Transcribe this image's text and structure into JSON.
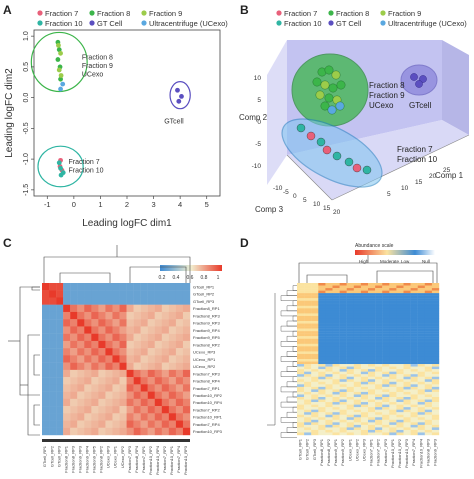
{
  "colors": {
    "fraction7": "#e8607a",
    "fraction8": "#3cb54a",
    "fraction9": "#9ccc4a",
    "fraction10": "#2fb5a3",
    "gtcell": "#5b4fc0",
    "ucexo": "#5aa8e0",
    "green_ring": "#3cb54a",
    "teal_ring": "#2fb5a3",
    "blue_ring": "#5b4fc0",
    "heat_high": "#e83a2a",
    "heat_mid": "#fbe3a0",
    "heat_low": "#3d8bd4",
    "box_face": "#c8c8f0"
  },
  "panels": {
    "a": {
      "letter": "A"
    },
    "b": {
      "letter": "B"
    },
    "c": {
      "letter": "C"
    },
    "d": {
      "letter": "D"
    }
  },
  "legend": [
    {
      "label": "Fraction 7",
      "color_key": "fraction7"
    },
    {
      "label": "Fraction 8",
      "color_key": "fraction8"
    },
    {
      "label": "Fraction 9",
      "color_key": "fraction9"
    },
    {
      "label": "Fraction 10",
      "color_key": "fraction10"
    },
    {
      "label": "GT Cell",
      "color_key": "gtcell"
    },
    {
      "label": "Ultracentrifuge (UCexo)",
      "color_key": "ucexo"
    }
  ],
  "chart_data": [
    {
      "panel": "A",
      "type": "scatter",
      "xlabel": "Leading logFC dim1",
      "ylabel": "Leading logFC dim2",
      "xlim": [
        -1.5,
        5.5
      ],
      "ylim": [
        -1.6,
        1.1
      ],
      "xticks": [
        -1,
        0,
        1,
        2,
        3,
        4,
        5
      ],
      "yticks": [
        -1.5,
        -1.0,
        -0.5,
        0.0,
        0.5,
        1.0
      ],
      "ytick_labels": [
        "-1.5",
        "-1.0",
        "-0.5",
        "0.0",
        "0.5",
        "1.0"
      ],
      "series": [
        {
          "name": "Fraction 7",
          "color_key": "fraction7",
          "points": [
            [
              -0.5,
              -1.02
            ],
            [
              -0.45,
              -1.18
            ],
            [
              -0.52,
              -1.12
            ]
          ]
        },
        {
          "name": "Fraction 8",
          "color_key": "fraction8",
          "points": [
            [
              -0.6,
              0.9
            ],
            [
              -0.55,
              0.78
            ],
            [
              -0.6,
              0.62
            ],
            [
              -0.52,
              0.5
            ],
            [
              -0.5,
              0.3
            ]
          ]
        },
        {
          "name": "Fraction 9",
          "color_key": "fraction9",
          "points": [
            [
              -0.58,
              0.85
            ],
            [
              -0.5,
              0.72
            ],
            [
              -0.55,
              0.45
            ],
            [
              -0.48,
              0.36
            ]
          ]
        },
        {
          "name": "Fraction 10",
          "color_key": "fraction10",
          "points": [
            [
              -0.55,
              -1.06
            ],
            [
              -0.5,
              -1.15
            ],
            [
              -0.48,
              -1.26
            ],
            [
              -0.4,
              -1.22
            ]
          ]
        },
        {
          "name": "GT Cell",
          "color_key": "gtcell",
          "points": [
            [
              3.9,
              0.12
            ],
            [
              4.05,
              0.02
            ],
            [
              3.95,
              -0.06
            ]
          ]
        },
        {
          "name": "Ultracentrifuge (UCexo)",
          "color_key": "ucexo",
          "points": [
            [
              -0.42,
              0.22
            ],
            [
              -0.5,
              0.14
            ]
          ]
        }
      ],
      "annotations": [
        {
          "text": "Fraction 8",
          "x": 0.3,
          "y": 0.62
        },
        {
          "text": "Fraction 9",
          "x": 0.3,
          "y": 0.48
        },
        {
          "text": "UCexo",
          "x": 0.3,
          "y": 0.34
        },
        {
          "text": "GTcell",
          "x": 3.4,
          "y": -0.42
        },
        {
          "text": "Fraction 7",
          "x": -0.2,
          "y": -1.08
        },
        {
          "text": "Fraction 10",
          "x": -0.2,
          "y": -1.22
        }
      ],
      "circles": [
        {
          "color_key": "green_ring",
          "cx": -0.55,
          "cy": 0.58,
          "rx": 1.05,
          "ry": 0.48
        },
        {
          "color_key": "teal_ring",
          "cx": -0.5,
          "cy": -1.12,
          "rx": 0.85,
          "ry": 0.33
        },
        {
          "color_key": "blue_ring",
          "cx": 4.0,
          "cy": 0.04,
          "rx": 0.38,
          "ry": 0.22
        }
      ]
    },
    {
      "panel": "B",
      "type": "scatter",
      "projection": "3d",
      "axis_labels": [
        "Comp 1",
        "Comp 2",
        "Comp 3"
      ],
      "comp1_ticks": [
        5,
        10,
        15,
        20,
        25
      ],
      "comp2_ticks": [
        -10,
        -5,
        0,
        5,
        10
      ],
      "comp3_ticks": [
        -10,
        -5,
        0,
        5,
        10,
        15,
        20
      ],
      "annotations": [
        {
          "text": "Fraction 8"
        },
        {
          "text": "Fraction 9"
        },
        {
          "text": "UCexo"
        },
        {
          "text": "GTcell"
        },
        {
          "text": "Fraction 7"
        },
        {
          "text": "Fraction 10"
        }
      ]
    },
    {
      "panel": "C",
      "type": "heatmap",
      "colorbar_ticks": [
        "0.2",
        "0.4",
        "0.6",
        "0.8",
        "1"
      ],
      "row_labels": [
        "GTcell_RP1",
        "GTcell_RP2",
        "GTcell_RP3",
        "Fraction8_RP1",
        "Fraction8_RP3",
        "Fraction9_RP3",
        "Fraction9_RP4",
        "Fraction9_RP5",
        "Fraction8_RP2",
        "UCexo_RP3",
        "UCexo_RP1",
        "UCexo_RP2",
        "Fraction7_RP3",
        "Fraction8_RP4",
        "Fraction7_RP1",
        "Fraction10_RP2",
        "Fraction10_RP4",
        "Fraction7_RP2",
        "Fraction10_RP1",
        "Fraction7_RP4",
        "Fraction10_RP3"
      ]
    },
    {
      "panel": "D",
      "type": "heatmap",
      "legend_title": "Abundance scale",
      "legend_labels": [
        "High",
        "Moderate",
        "Low",
        "Null"
      ],
      "col_labels": [
        "GTcell_RP1",
        "GTcell_RP2",
        "GTcell_RP3",
        "Fraction8_RP1",
        "Fraction8_RP2",
        "Fraction9_RP1",
        "Fraction9_RP2",
        "UCexo_RP1",
        "UCexo_RP2",
        "UCexo_RP3",
        "Fraction7_RP1",
        "Fraction7_RP2",
        "Fraction7_RP3",
        "Fraction10_RP1",
        "Fraction10_RP2",
        "Fraction10_RP3",
        "Fraction7_RP4",
        "Fraction10_RP4",
        "Fraction8_RP3",
        "Fraction9_RP3"
      ]
    }
  ]
}
